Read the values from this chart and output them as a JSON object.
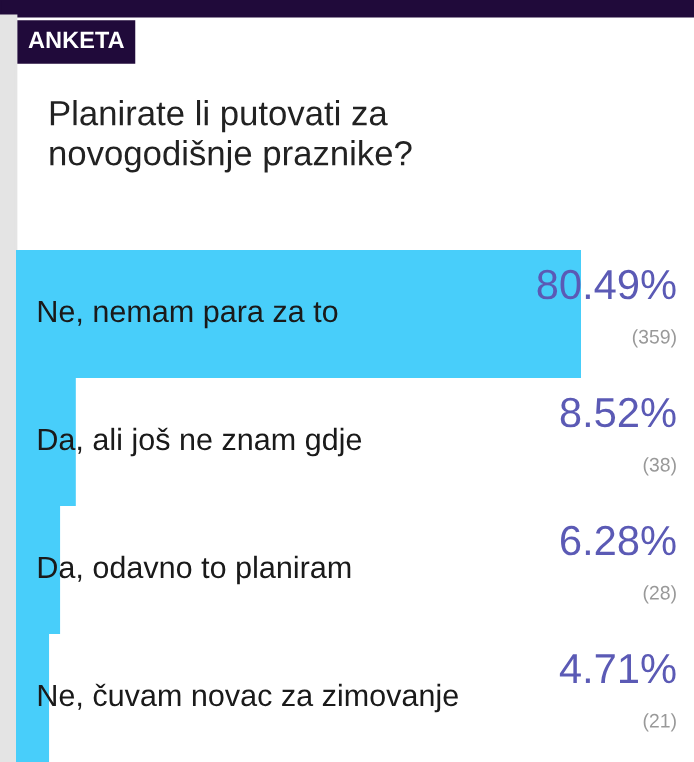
{
  "chart_data": {
    "type": "bar",
    "orientation": "horizontal",
    "title": "Planirate li putovati za\nnovogodišnje praznike?",
    "annotations": [
      "ANKETA"
    ],
    "categories": [
      "Ne, nemam para za to",
      "Da, ali još ne znam gdje",
      "Da, odavno to planiram",
      "Ne, čuvam novac za zimovanje"
    ],
    "series": [
      {
        "color": "#48cefa",
        "values": [
          80.49,
          8.52,
          6.28,
          4.71
        ],
        "value_labels": [
          "80.49%\n(359)",
          "8.52%\n(38)",
          "6.28%\n(28)",
          "4.71%\n(21)"
        ]
      }
    ],
    "legend": false
  }
}
